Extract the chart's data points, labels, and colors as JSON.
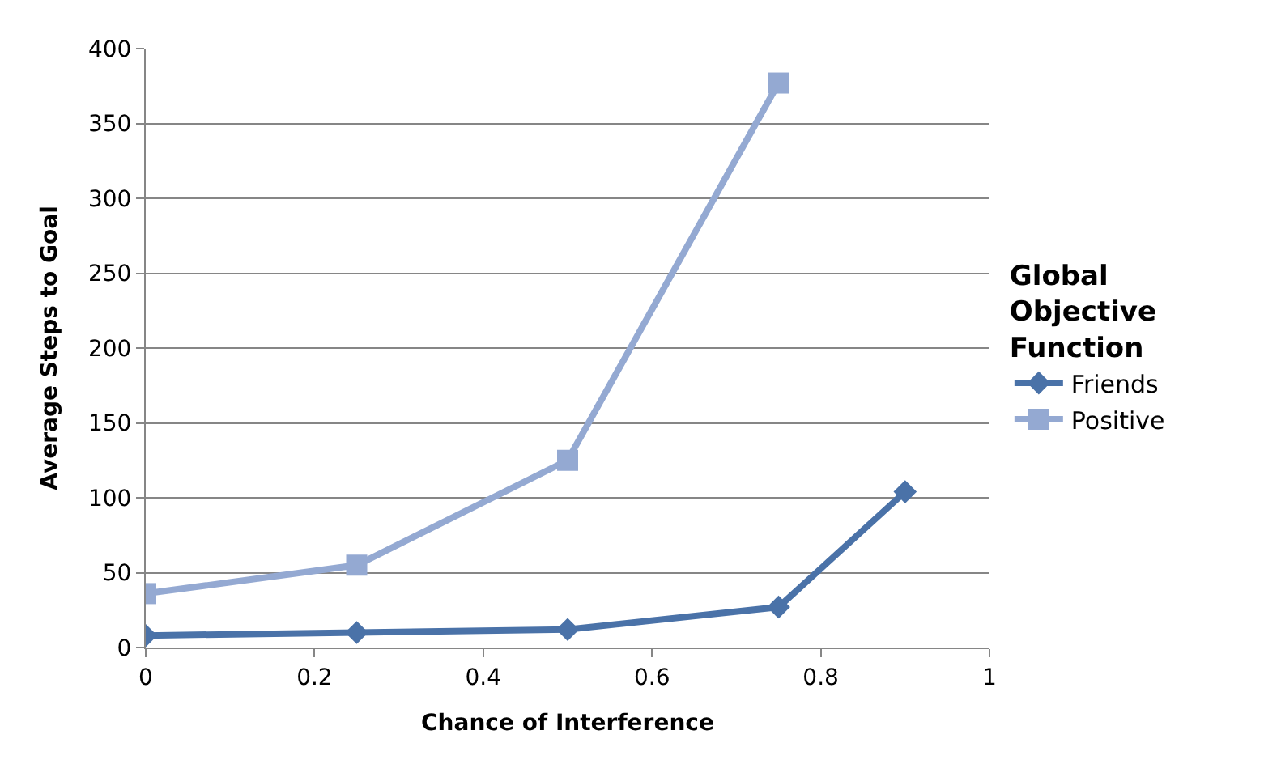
{
  "chart_data": {
    "type": "line",
    "xlabel": "Chance of Interference",
    "ylabel": "Average Steps to Goal",
    "legend_title": "Global\nObjective\nFunction",
    "series": [
      {
        "name": "Friends",
        "color": "#4a72a8",
        "marker": "diamond",
        "x": [
          0,
          0.25,
          0.5,
          0.75,
          0.9
        ],
        "values": [
          8,
          10,
          12,
          27,
          104
        ]
      },
      {
        "name": "Positive",
        "color": "#94a9d2",
        "marker": "square",
        "x": [
          0,
          0.25,
          0.5,
          0.75
        ],
        "values": [
          36,
          55,
          125,
          377
        ]
      }
    ],
    "xlim": [
      0,
      1
    ],
    "xticks": [
      0,
      0.2,
      0.4,
      0.6,
      0.8,
      1
    ],
    "ylim": [
      0,
      400
    ],
    "yticks": [
      0,
      50,
      100,
      150,
      200,
      250,
      300,
      350,
      400
    ],
    "grid": "y",
    "legend": "right",
    "line_style": "solid"
  }
}
